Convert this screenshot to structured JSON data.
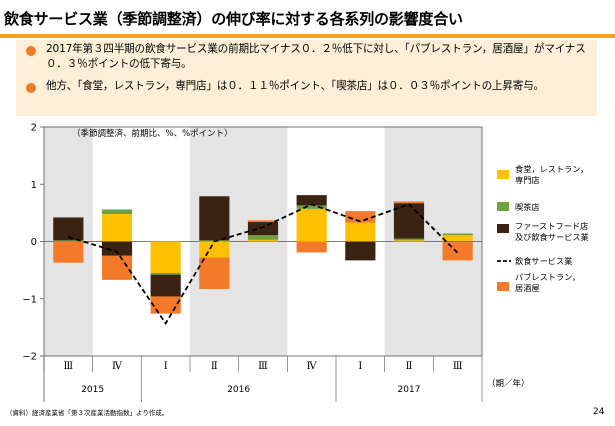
{
  "header": {
    "title": "飲食サービス業（季節調整済）の伸び率に対する各系列の影響度合い",
    "bullets": [
      "2017年第３四半期の飲食サービス業の前期比マイナス０．２％低下に対し、「パブレストラン，居酒屋」がマイナス０．３％ポイントの低下寄与。",
      "他方、「食堂，レストラン，専門店」は０．１１％ポイント、「喫茶店」は０．０３％ポイントの上昇寄与。"
    ]
  },
  "footer": {
    "source": "（資料）経済産業省「第３次産業活動指数」より作成。",
    "page_number": "24"
  },
  "chart_data": {
    "type": "bar",
    "stacked": true,
    "note": "（季節調整済、前期比、%、%ポイント）",
    "x_unit": "（期／年）",
    "quarter_labels": [
      "Ⅲ",
      "Ⅳ",
      "Ⅰ",
      "Ⅱ",
      "Ⅲ",
      "Ⅳ",
      "Ⅰ",
      "Ⅱ",
      "Ⅲ"
    ],
    "year_groups": [
      {
        "label": "2015",
        "start": 0,
        "end": 1
      },
      {
        "label": "2016",
        "start": 2,
        "end": 5
      },
      {
        "label": "2017",
        "start": 6,
        "end": 8
      }
    ],
    "shaded_quarters": [
      0,
      3,
      4,
      7,
      8
    ],
    "ylim": [
      -2,
      2
    ],
    "yticks": [
      "2",
      "1",
      "0",
      "−1",
      "−2"
    ],
    "series": [
      {
        "name": "食堂，レストラン，専門店",
        "color": "#ffc000",
        "values": [
          0.0,
          0.48,
          -0.55,
          -0.28,
          0.03,
          0.57,
          0.33,
          0.02,
          0.11
        ]
      },
      {
        "name": "喫茶店",
        "color": "#70a040",
        "values": [
          0.02,
          0.08,
          -0.03,
          0.02,
          0.08,
          0.06,
          0.0,
          0.03,
          0.03
        ]
      },
      {
        "name": "ファーストフード店及び飲食サービス業",
        "color": "#3b2314",
        "values": [
          0.4,
          -0.25,
          -0.38,
          0.77,
          0.23,
          0.18,
          -0.33,
          0.62,
          -0.01
        ]
      },
      {
        "name": "パブレストラン，居酒屋",
        "color": "#f47a2a",
        "values": [
          -0.37,
          -0.42,
          -0.3,
          -0.55,
          0.03,
          -0.19,
          0.2,
          0.03,
          -0.32
        ]
      }
    ],
    "line": {
      "name": "飲食サービス業",
      "color": "#000000",
      "values": [
        0.08,
        -0.18,
        -1.43,
        0.0,
        0.25,
        0.65,
        0.35,
        0.65,
        -0.2
      ]
    }
  }
}
